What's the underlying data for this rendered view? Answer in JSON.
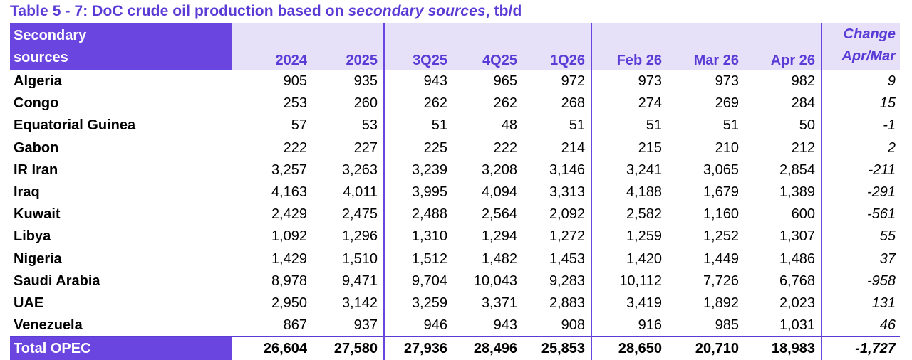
{
  "title": {
    "prefix": "Table 5 - 7: DoC crude oil production based on ",
    "italic": "secondary sources",
    "suffix": ", tb/d"
  },
  "header": {
    "first_line1": "Secondary",
    "first_line2": "sources",
    "columns": [
      "2024",
      "2025",
      "3Q25",
      "4Q25",
      "1Q26",
      "Feb 26",
      "Mar 26",
      "Apr 26"
    ],
    "change_line1": "Change",
    "change_line2": "Apr/Mar"
  },
  "rows": [
    {
      "name": "Algeria",
      "values": [
        "905",
        "935",
        "943",
        "965",
        "972",
        "973",
        "973",
        "982"
      ],
      "change": "9"
    },
    {
      "name": "Congo",
      "values": [
        "253",
        "260",
        "262",
        "262",
        "268",
        "274",
        "269",
        "284"
      ],
      "change": "15"
    },
    {
      "name": "Equatorial Guinea",
      "values": [
        "57",
        "53",
        "51",
        "48",
        "51",
        "51",
        "51",
        "50"
      ],
      "change": "-1"
    },
    {
      "name": "Gabon",
      "values": [
        "222",
        "227",
        "225",
        "222",
        "214",
        "215",
        "210",
        "212"
      ],
      "change": "2"
    },
    {
      "name": "IR Iran",
      "values": [
        "3,257",
        "3,263",
        "3,239",
        "3,208",
        "3,146",
        "3,241",
        "3,065",
        "2,854"
      ],
      "change": "-211"
    },
    {
      "name": "Iraq",
      "values": [
        "4,163",
        "4,011",
        "3,995",
        "4,094",
        "3,313",
        "4,188",
        "1,679",
        "1,389"
      ],
      "change": "-291"
    },
    {
      "name": "Kuwait",
      "values": [
        "2,429",
        "2,475",
        "2,488",
        "2,564",
        "2,092",
        "2,582",
        "1,160",
        "600"
      ],
      "change": "-561"
    },
    {
      "name": "Libya",
      "values": [
        "1,092",
        "1,296",
        "1,310",
        "1,294",
        "1,272",
        "1,259",
        "1,252",
        "1,307"
      ],
      "change": "55"
    },
    {
      "name": "Nigeria",
      "values": [
        "1,429",
        "1,510",
        "1,512",
        "1,482",
        "1,453",
        "1,420",
        "1,449",
        "1,486"
      ],
      "change": "37"
    },
    {
      "name": "Saudi Arabia",
      "values": [
        "8,978",
        "9,471",
        "9,704",
        "10,043",
        "9,283",
        "10,112",
        "7,726",
        "6,768"
      ],
      "change": "-958"
    },
    {
      "name": "UAE",
      "values": [
        "2,950",
        "3,142",
        "3,259",
        "3,371",
        "2,883",
        "3,419",
        "1,892",
        "2,023"
      ],
      "change": "131"
    },
    {
      "name": "Venezuela",
      "values": [
        "867",
        "937",
        "946",
        "943",
        "908",
        "916",
        "985",
        "1,031"
      ],
      "change": "46"
    }
  ],
  "total": {
    "name": "Total  OPEC",
    "values": [
      "26,604",
      "27,580",
      "27,936",
      "28,496",
      "25,853",
      "28,650",
      "20,710",
      "18,983"
    ],
    "change": "-1,727"
  },
  "colors": {
    "accent": "#5a3bd6",
    "header_fill": "#6a45df",
    "header_band": "#e6e0f8"
  }
}
